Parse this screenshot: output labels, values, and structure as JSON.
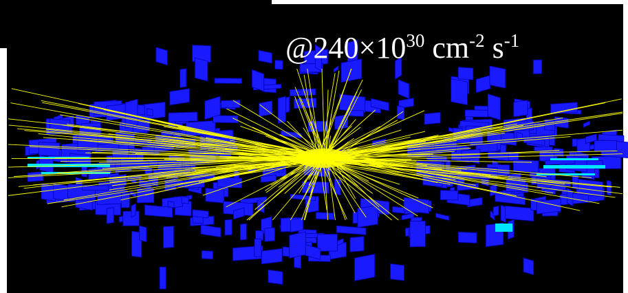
{
  "luminosity": {
    "base": "@240×10",
    "exp": "30",
    "unit1": " cm",
    "exp1": "-2",
    "unit2": " s",
    "exp2": "-1"
  },
  "colors": {
    "background": "#000000",
    "frame": "#ffffff",
    "calorimeter": "#1a1aff",
    "calorimeter_edge": "#0000b0",
    "highlight": "#00e5ff",
    "tracks": "#ffff00"
  }
}
